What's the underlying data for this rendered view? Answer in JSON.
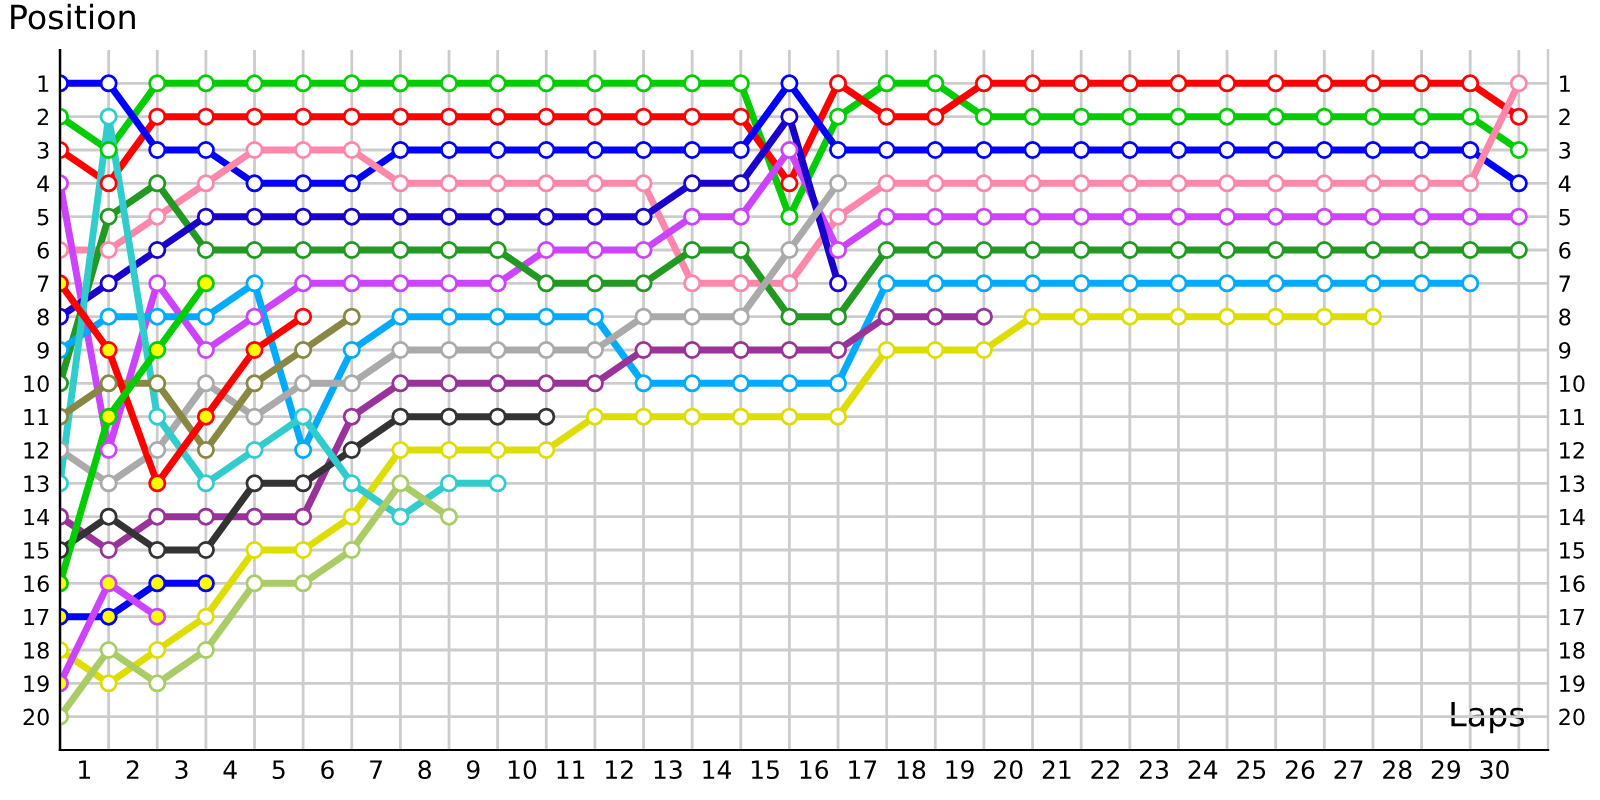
{
  "chart_data": {
    "type": "line",
    "xlabel": "Laps",
    "ylabel": "Position",
    "x": [
      0,
      1,
      2,
      3,
      4,
      5,
      6,
      7,
      8,
      9,
      10,
      11,
      12,
      13,
      14,
      15,
      16,
      17,
      18,
      19,
      20,
      21,
      22,
      23,
      24,
      25,
      26,
      27,
      28,
      29,
      30
    ],
    "xlim": [
      0,
      30.6
    ],
    "ylim": [
      21,
      0
    ],
    "y2lim": [
      21,
      0
    ],
    "xticks": [
      {
        "value": 0,
        "label": null
      },
      {
        "value": 0.5,
        "label": "1"
      },
      {
        "value": 1,
        "label": null
      },
      {
        "value": 1.5,
        "label": "2"
      },
      {
        "value": 2,
        "label": null
      },
      {
        "value": 2.5,
        "label": "3"
      },
      {
        "value": 3,
        "label": null
      },
      {
        "value": 3.5,
        "label": "4"
      },
      {
        "value": 4,
        "label": null
      },
      {
        "value": 4.5,
        "label": "5"
      },
      {
        "value": 5,
        "label": null
      },
      {
        "value": 5.5,
        "label": "6"
      },
      {
        "value": 6,
        "label": null
      },
      {
        "value": 6.5,
        "label": "7"
      },
      {
        "value": 7,
        "label": null
      },
      {
        "value": 7.5,
        "label": "8"
      },
      {
        "value": 8,
        "label": null
      },
      {
        "value": 8.5,
        "label": "9"
      },
      {
        "value": 9,
        "label": null
      },
      {
        "value": 9.5,
        "label": "10"
      },
      {
        "value": 10,
        "label": null
      },
      {
        "value": 10.5,
        "label": "11"
      },
      {
        "value": 11,
        "label": null
      },
      {
        "value": 11.5,
        "label": "12"
      },
      {
        "value": 12,
        "label": null
      },
      {
        "value": 12.5,
        "label": "13"
      },
      {
        "value": 13,
        "label": null
      },
      {
        "value": 13.5,
        "label": "14"
      },
      {
        "value": 14,
        "label": null
      },
      {
        "value": 14.5,
        "label": "15"
      },
      {
        "value": 15,
        "label": null
      },
      {
        "value": 15.5,
        "label": "16"
      },
      {
        "value": 16,
        "label": null
      },
      {
        "value": 16.5,
        "label": "17"
      },
      {
        "value": 17,
        "label": null
      },
      {
        "value": 17.5,
        "label": "18"
      },
      {
        "value": 18,
        "label": null
      },
      {
        "value": 18.5,
        "label": "19"
      },
      {
        "value": 19,
        "label": null
      },
      {
        "value": 19.5,
        "label": "20"
      },
      {
        "value": 20,
        "label": null
      },
      {
        "value": 20.5,
        "label": "21"
      },
      {
        "value": 21,
        "label": null
      },
      {
        "value": 21.5,
        "label": "22"
      },
      {
        "value": 22,
        "label": null
      },
      {
        "value": 22.5,
        "label": "23"
      },
      {
        "value": 23,
        "label": null
      },
      {
        "value": 23.5,
        "label": "24"
      },
      {
        "value": 24,
        "label": null
      },
      {
        "value": 24.5,
        "label": "25"
      },
      {
        "value": 25,
        "label": null
      },
      {
        "value": 25.5,
        "label": "26"
      },
      {
        "value": 26,
        "label": null
      },
      {
        "value": 26.5,
        "label": "27"
      },
      {
        "value": 27,
        "label": null
      },
      {
        "value": 27.5,
        "label": "28"
      },
      {
        "value": 28,
        "label": null
      },
      {
        "value": 28.5,
        "label": "29"
      },
      {
        "value": 29,
        "label": null
      },
      {
        "value": 29.5,
        "label": "30"
      },
      {
        "value": 30,
        "label": null
      }
    ],
    "yticks": [
      1,
      2,
      3,
      4,
      5,
      6,
      7,
      8,
      9,
      10,
      11,
      12,
      13,
      14,
      15,
      16,
      17,
      18,
      19,
      20
    ],
    "y2ticks": [
      1,
      2,
      3,
      4,
      5,
      6,
      7,
      8,
      9,
      10,
      11,
      12,
      13,
      14,
      15,
      16,
      17,
      18,
      19,
      20
    ],
    "grid": true,
    "legend": false,
    "marker": "circle",
    "line_style": "solid",
    "series": [
      {
        "color": "#00cc00",
        "values": [
          2,
          3,
          1,
          1,
          1,
          1,
          1,
          1,
          1,
          1,
          1,
          1,
          1,
          1,
          1,
          5,
          2,
          1,
          1,
          2,
          2,
          2,
          2,
          2,
          2,
          2,
          2,
          2,
          2,
          2,
          3
        ]
      },
      {
        "color": "#ff0000",
        "values": [
          3,
          4,
          2,
          2,
          2,
          2,
          2,
          2,
          2,
          2,
          2,
          2,
          2,
          2,
          2,
          4,
          1,
          2,
          2,
          1,
          1,
          1,
          1,
          1,
          1,
          1,
          1,
          1,
          1,
          1,
          2
        ]
      },
      {
        "color": "#0000ff",
        "values": [
          1,
          1,
          3,
          3,
          4,
          4,
          4,
          3,
          3,
          3,
          3,
          3,
          3,
          3,
          3,
          1,
          3,
          3,
          3,
          3,
          3,
          3,
          3,
          3,
          3,
          3,
          3,
          3,
          3,
          3,
          4
        ]
      },
      {
        "color": "#ff88aa",
        "values": [
          6,
          6,
          5,
          4,
          3,
          3,
          3,
          4,
          4,
          4,
          4,
          4,
          4,
          7,
          7,
          7,
          5,
          4,
          4,
          4,
          4,
          4,
          4,
          4,
          4,
          4,
          4,
          4,
          4,
          4,
          1
        ]
      },
      {
        "color": "#cc44ff",
        "values": [
          4,
          12,
          7,
          9,
          8,
          7,
          7,
          7,
          7,
          7,
          6,
          6,
          6,
          5,
          5,
          3,
          6,
          5,
          5,
          5,
          5,
          5,
          5,
          5,
          5,
          5,
          5,
          5,
          5,
          5,
          5
        ]
      },
      {
        "color": "#229922",
        "values": [
          10,
          5,
          4,
          6,
          6,
          6,
          6,
          6,
          6,
          6,
          7,
          7,
          7,
          6,
          6,
          8,
          8,
          6,
          6,
          6,
          6,
          6,
          6,
          6,
          6,
          6,
          6,
          6,
          6,
          6,
          6
        ]
      },
      {
        "color": "#00aaff",
        "values": [
          9,
          8,
          8,
          8,
          7,
          12,
          9,
          8,
          8,
          8,
          8,
          8,
          10,
          10,
          10,
          10,
          10,
          7,
          7,
          7,
          7,
          7,
          7,
          7,
          7,
          7,
          7,
          7,
          7,
          7,
          null
        ]
      },
      {
        "color": "#1a00cc",
        "values": [
          8,
          7,
          6,
          5,
          5,
          5,
          5,
          5,
          5,
          5,
          5,
          5,
          5,
          4,
          4,
          2,
          7,
          null,
          null,
          null,
          null,
          null,
          null,
          null,
          null,
          null,
          null,
          null,
          null,
          null,
          null
        ]
      },
      {
        "color": "#dddd00",
        "values": [
          18,
          19,
          18,
          17,
          15,
          15,
          14,
          12,
          12,
          12,
          12,
          11,
          11,
          11,
          11,
          11,
          11,
          9,
          9,
          9,
          8,
          8,
          8,
          8,
          8,
          8,
          8,
          8,
          null,
          null,
          null
        ]
      },
      {
        "color": "#993399",
        "values": [
          14,
          15,
          14,
          14,
          14,
          14,
          11,
          10,
          10,
          10,
          10,
          10,
          9,
          9,
          9,
          9,
          9,
          8,
          8,
          8,
          null,
          null,
          null,
          null,
          null,
          null,
          null,
          null,
          null,
          null,
          null
        ]
      },
      {
        "color": "#aaaaaa",
        "values": [
          12,
          13,
          12,
          10,
          11,
          10,
          10,
          9,
          9,
          9,
          9,
          9,
          8,
          8,
          8,
          6,
          4,
          null,
          null,
          null,
          null,
          null,
          null,
          null,
          null,
          null,
          null,
          null,
          null,
          null,
          null
        ]
      },
      {
        "color": "#333333",
        "values": [
          15,
          14,
          15,
          15,
          13,
          13,
          12,
          11,
          11,
          11,
          11,
          null,
          null,
          null,
          null,
          null,
          null,
          null,
          null,
          null,
          null,
          null,
          null,
          null,
          null,
          null,
          null,
          null,
          null,
          null,
          null
        ]
      },
      {
        "color": "#33cccc",
        "values": [
          13,
          2,
          11,
          13,
          12,
          11,
          13,
          14,
          13,
          13,
          null,
          null,
          null,
          null,
          null,
          null,
          null,
          null,
          null,
          null,
          null,
          null,
          null,
          null,
          null,
          null,
          null,
          null,
          null,
          null,
          null
        ]
      },
      {
        "color": "#aacc66",
        "values": [
          20,
          18,
          19,
          18,
          16,
          16,
          15,
          13,
          14,
          null,
          null,
          null,
          null,
          null,
          null,
          null,
          null,
          null,
          null,
          null,
          null,
          null,
          null,
          null,
          null,
          null,
          null,
          null,
          null,
          null,
          null
        ]
      },
      {
        "color": "#888844",
        "values": [
          11,
          10,
          10,
          12,
          10,
          9,
          8,
          null,
          null,
          null,
          null,
          null,
          null,
          null,
          null,
          null,
          null,
          null,
          null,
          null,
          null,
          null,
          null,
          null,
          null,
          null,
          null,
          null,
          null,
          null,
          null
        ]
      },
      {
        "color": "#ff0000",
        "values": [
          7,
          9,
          13,
          11,
          9,
          8,
          null,
          null,
          null,
          null,
          null,
          null,
          null,
          null,
          null,
          null,
          null,
          null,
          null,
          null,
          null,
          null,
          null,
          null,
          null,
          null,
          null,
          null,
          null,
          null,
          null
        ],
        "colors": [
          "#ffff00",
          "#ffff00",
          "#ffff00",
          "#ffff00",
          "#ffff00",
          "#ffffff",
          null,
          null,
          null,
          null,
          null,
          null,
          null,
          null,
          null,
          null,
          null,
          null,
          null,
          null,
          null,
          null,
          null,
          null,
          null,
          null,
          null,
          null,
          null,
          null,
          null
        ]
      },
      {
        "color": "#00cc00",
        "values": [
          16,
          11,
          9,
          7,
          null,
          null,
          null,
          null,
          null,
          null,
          null,
          null,
          null,
          null,
          null,
          null,
          null,
          null,
          null,
          null,
          null,
          null,
          null,
          null,
          null,
          null,
          null,
          null,
          null,
          null,
          null
        ],
        "colors": [
          "#ffff00",
          "#ffff00",
          "#ffff00",
          "#ffff00",
          null,
          null,
          null,
          null,
          null,
          null,
          null,
          null,
          null,
          null,
          null,
          null,
          null,
          null,
          null,
          null,
          null,
          null,
          null,
          null,
          null,
          null,
          null,
          null,
          null,
          null,
          null
        ]
      },
      {
        "color": "#0000ff",
        "values": [
          17,
          17,
          16,
          16,
          null,
          null,
          null,
          null,
          null,
          null,
          null,
          null,
          null,
          null,
          null,
          null,
          null,
          null,
          null,
          null,
          null,
          null,
          null,
          null,
          null,
          null,
          null,
          null,
          null,
          null,
          null
        ],
        "colors": [
          "#ffff00",
          "#ffff00",
          "#ffff00",
          "#ffff00",
          null,
          null,
          null,
          null,
          null,
          null,
          null,
          null,
          null,
          null,
          null,
          null,
          null,
          null,
          null,
          null,
          null,
          null,
          null,
          null,
          null,
          null,
          null,
          null,
          null,
          null,
          null
        ]
      },
      {
        "color": "#cc44ff",
        "values": [
          19,
          16,
          17,
          null,
          null,
          null,
          null,
          null,
          null,
          null,
          null,
          null,
          null,
          null,
          null,
          null,
          null,
          null,
          null,
          null,
          null,
          null,
          null,
          null,
          null,
          null,
          null,
          null,
          null,
          null,
          null
        ],
        "colors": [
          "#ffff00",
          "#ffff00",
          "#ffff00",
          null,
          null,
          null,
          null,
          null,
          null,
          null,
          null,
          null,
          null,
          null,
          null,
          null,
          null,
          null,
          null,
          null,
          null,
          null,
          null,
          null,
          null,
          null,
          null,
          null,
          null,
          null,
          null
        ]
      }
    ]
  }
}
